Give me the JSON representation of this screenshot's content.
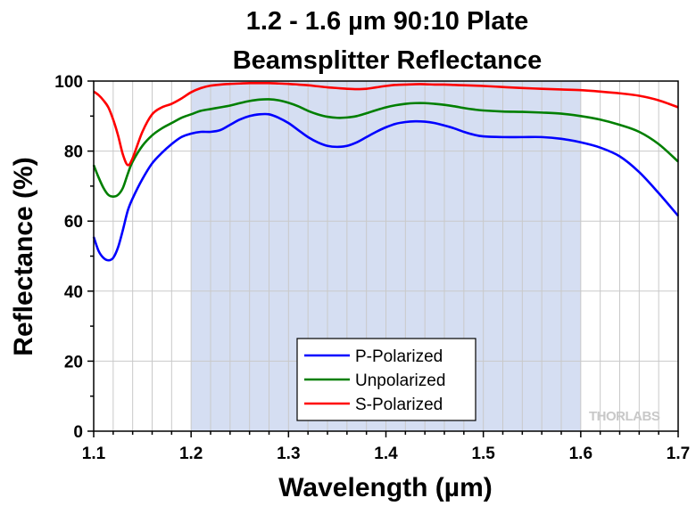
{
  "chart_data": {
    "type": "line",
    "title_lines": [
      "1.2 - 1.6 µm 90:10 Plate",
      "Beamsplitter Reflectance"
    ],
    "xlabel": "Wavelength (µm)",
    "ylabel": "Reflectance (%)",
    "xlim": [
      1.1,
      1.7
    ],
    "ylim": [
      0,
      100
    ],
    "xticks": [
      1.1,
      1.2,
      1.3,
      1.4,
      1.5,
      1.6,
      1.7
    ],
    "xtick_labels": [
      "1.1",
      "1.2",
      "1.3",
      "1.4",
      "1.5",
      "1.6",
      "1.7"
    ],
    "yticks": [
      0,
      20,
      40,
      60,
      80,
      100
    ],
    "ytick_labels": [
      "0",
      "20",
      "40",
      "60",
      "80",
      "100"
    ],
    "grid": true,
    "shaded_region": [
      1.2,
      1.6
    ],
    "shade_color": "#d5def2",
    "legend_position": "bottom-center",
    "watermark": "THORLABS",
    "series": [
      {
        "name": "P-Polarized",
        "color": "#0000ff",
        "x": [
          1.1,
          1.105,
          1.11,
          1.115,
          1.12,
          1.125,
          1.13,
          1.135,
          1.14,
          1.15,
          1.16,
          1.17,
          1.18,
          1.19,
          1.2,
          1.21,
          1.22,
          1.23,
          1.24,
          1.25,
          1.26,
          1.27,
          1.28,
          1.29,
          1.3,
          1.31,
          1.32,
          1.33,
          1.34,
          1.35,
          1.36,
          1.37,
          1.38,
          1.39,
          1.4,
          1.41,
          1.42,
          1.43,
          1.44,
          1.45,
          1.46,
          1.47,
          1.48,
          1.49,
          1.5,
          1.52,
          1.54,
          1.56,
          1.58,
          1.6,
          1.62,
          1.64,
          1.66,
          1.68,
          1.7
        ],
        "y": [
          55.5,
          51.5,
          49.5,
          48.8,
          49.5,
          52.5,
          57.5,
          63.0,
          66.5,
          72.0,
          76.5,
          79.5,
          82.0,
          84.0,
          85.0,
          85.5,
          85.5,
          86.0,
          87.5,
          89.0,
          90.0,
          90.5,
          90.5,
          89.5,
          88.0,
          86.0,
          84.0,
          82.5,
          81.5,
          81.2,
          81.5,
          82.5,
          84.0,
          85.5,
          86.8,
          87.8,
          88.3,
          88.5,
          88.4,
          88.0,
          87.3,
          86.5,
          85.5,
          84.7,
          84.2,
          84.0,
          84.0,
          84.0,
          83.5,
          82.5,
          81.0,
          78.5,
          74.0,
          68.0,
          61.5
        ]
      },
      {
        "name": "Unpolarized",
        "color": "#007f00",
        "x": [
          1.1,
          1.105,
          1.11,
          1.115,
          1.12,
          1.125,
          1.13,
          1.135,
          1.14,
          1.15,
          1.16,
          1.17,
          1.18,
          1.19,
          1.2,
          1.21,
          1.22,
          1.23,
          1.24,
          1.25,
          1.26,
          1.27,
          1.28,
          1.29,
          1.3,
          1.31,
          1.32,
          1.33,
          1.34,
          1.35,
          1.36,
          1.37,
          1.38,
          1.39,
          1.4,
          1.41,
          1.42,
          1.43,
          1.44,
          1.45,
          1.46,
          1.47,
          1.48,
          1.49,
          1.5,
          1.52,
          1.54,
          1.56,
          1.58,
          1.6,
          1.62,
          1.64,
          1.66,
          1.68,
          1.7
        ],
        "y": [
          76.0,
          72.5,
          69.5,
          67.5,
          67.0,
          67.5,
          69.5,
          73.5,
          77.0,
          81.5,
          84.5,
          86.5,
          88.0,
          89.5,
          90.5,
          91.5,
          92.0,
          92.5,
          93.0,
          93.7,
          94.3,
          94.7,
          94.8,
          94.5,
          93.8,
          92.8,
          91.5,
          90.5,
          89.8,
          89.5,
          89.6,
          90.0,
          90.8,
          91.7,
          92.5,
          93.1,
          93.5,
          93.7,
          93.7,
          93.5,
          93.2,
          92.8,
          92.3,
          91.9,
          91.6,
          91.3,
          91.2,
          91.0,
          90.7,
          90.0,
          89.0,
          87.5,
          85.5,
          82.0,
          77.0
        ]
      },
      {
        "name": "S-Polarized",
        "color": "#ff0000",
        "x": [
          1.1,
          1.105,
          1.11,
          1.115,
          1.12,
          1.125,
          1.13,
          1.135,
          1.14,
          1.15,
          1.16,
          1.17,
          1.18,
          1.19,
          1.2,
          1.21,
          1.22,
          1.23,
          1.24,
          1.25,
          1.26,
          1.27,
          1.28,
          1.29,
          1.3,
          1.31,
          1.32,
          1.33,
          1.34,
          1.35,
          1.36,
          1.37,
          1.38,
          1.39,
          1.4,
          1.41,
          1.42,
          1.43,
          1.44,
          1.45,
          1.46,
          1.47,
          1.48,
          1.49,
          1.5,
          1.52,
          1.54,
          1.56,
          1.58,
          1.6,
          1.62,
          1.64,
          1.66,
          1.68,
          1.7
        ],
        "y": [
          97.0,
          96.0,
          94.5,
          92.5,
          89.0,
          84.5,
          79.0,
          76.0,
          78.0,
          85.5,
          90.5,
          92.5,
          93.5,
          95.0,
          96.8,
          98.0,
          98.7,
          99.0,
          99.2,
          99.3,
          99.4,
          99.4,
          99.4,
          99.3,
          99.2,
          99.0,
          98.8,
          98.5,
          98.2,
          98.0,
          97.8,
          97.7,
          97.8,
          98.2,
          98.6,
          98.9,
          99.0,
          99.1,
          99.1,
          99.0,
          99.0,
          98.9,
          98.8,
          98.7,
          98.6,
          98.3,
          98.0,
          97.8,
          97.6,
          97.4,
          97.0,
          96.5,
          95.8,
          94.5,
          92.5
        ]
      }
    ]
  }
}
